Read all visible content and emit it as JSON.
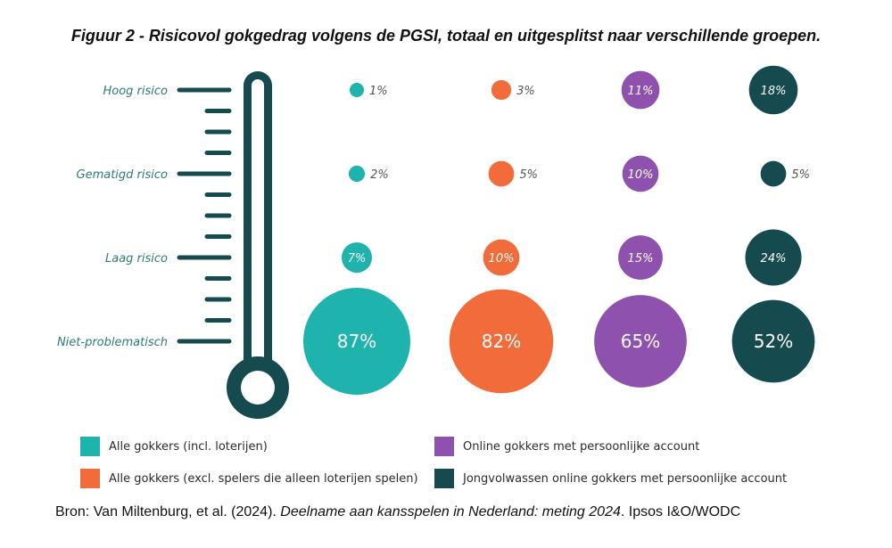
{
  "title": "Figuur 2 - Risicovol gokgedrag volgens de PGSI, totaal en uitgesplitst naar verschillende groepen.",
  "colors": {
    "text_teal": "#2f7a78",
    "thermometer": "#154a4e",
    "series": [
      "#1fb3ad",
      "#f26b3a",
      "#8e52ae",
      "#154a4e"
    ]
  },
  "chart_data": {
    "type": "bubble",
    "categories": [
      "Hoog risico",
      "Gematigd risico",
      "Laag risico",
      "Niet-problematisch"
    ],
    "series": [
      {
        "name": "Alle gokkers (incl. loterijen)",
        "values": [
          1,
          2,
          7,
          87
        ]
      },
      {
        "name": "Alle gokkers (excl. spelers die alleen loterijen spelen)",
        "values": [
          3,
          5,
          10,
          82
        ]
      },
      {
        "name": "Online gokkers met persoonlijke account",
        "values": [
          11,
          10,
          15,
          65
        ]
      },
      {
        "name": "Jongvolwassen online gokkers met persoonlijke account",
        "values": [
          18,
          5,
          24,
          52
        ]
      }
    ],
    "value_suffix": "%",
    "legend_position": "bottom"
  },
  "source": {
    "prefix": "Bron: Van Miltenburg, et al. (2024). ",
    "title": "Deelname aan kansspelen in Nederland: meting 2024",
    "suffix": ". Ipsos I&O/WODC"
  }
}
